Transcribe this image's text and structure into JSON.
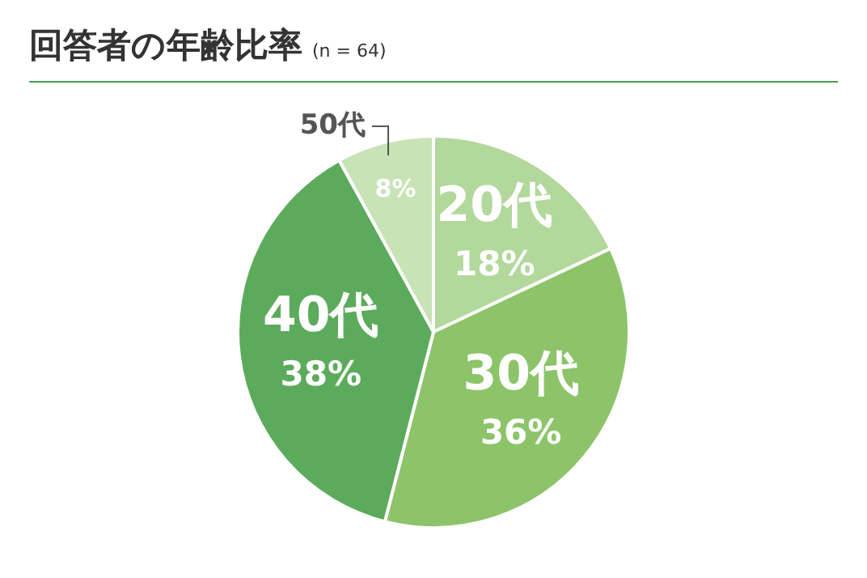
{
  "chart_data": {
    "type": "pie",
    "title": "回答者の年齢比率",
    "subtitle": "(n = 64)",
    "categories": [
      "20代",
      "30代",
      "40代",
      "50代"
    ],
    "values": [
      18,
      36,
      38,
      8
    ],
    "colors": [
      "#b3d89c",
      "#8dc46a",
      "#5cab5c",
      "#c8e3b6"
    ],
    "value_labels": [
      "18%",
      "36%",
      "38%",
      "8%"
    ],
    "legend": false
  }
}
